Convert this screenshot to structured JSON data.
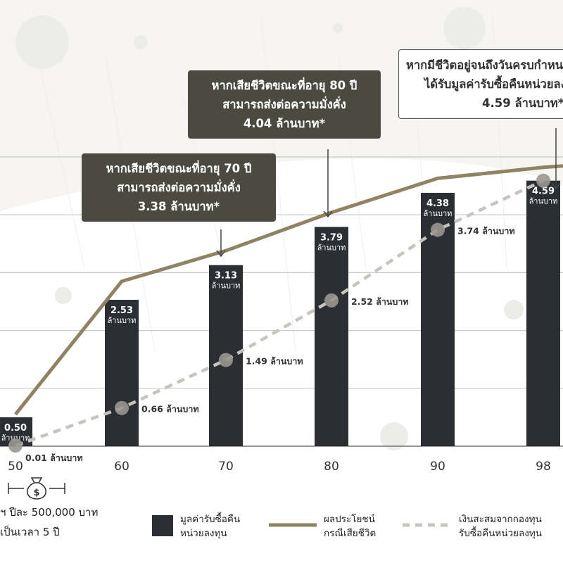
{
  "chart_data": {
    "type": "bar",
    "x": [
      50,
      60,
      70,
      80,
      90,
      98
    ],
    "x_labels": [
      "50",
      "60",
      "70",
      "80",
      "90",
      "98"
    ],
    "series": [
      {
        "name": "มูลค่ารับซื้อคืนหน่วยลงทุน",
        "type": "bar",
        "values": [
          0.5,
          2.53,
          3.13,
          3.79,
          4.38,
          4.59
        ],
        "value_labels": [
          "0.50",
          "2.53",
          "3.13",
          "3.79",
          "4.38",
          "4.59"
        ],
        "unit_label": "ล้านบาท",
        "color": "#2b2f33"
      },
      {
        "name": "ผลประโยชน์กรณีเสียชีวิต",
        "type": "line",
        "x": [
          50,
          60,
          70,
          80,
          90,
          98
        ],
        "values": [
          0.55,
          2.85,
          3.38,
          4.04,
          4.63,
          4.82
        ],
        "color": "#8f8364"
      },
      {
        "name": "เงินสะสมจากกองทุนรับซื้อคืนหน่วยลงทุน",
        "type": "dashed-line",
        "x": [
          50,
          60,
          70,
          80,
          90,
          98
        ],
        "values": [
          0.01,
          0.66,
          1.49,
          2.52,
          3.74,
          4.59
        ],
        "point_labels": [
          "0.01 ล้านบาท",
          "0.66 ล้านบาท",
          "1.49 ล้านบาท",
          "2.52 ล้านบาท",
          "3.74 ล้านบาท",
          ""
        ],
        "color": "#c8c4bd"
      }
    ],
    "ylim": [
      0,
      5.0
    ],
    "grid": "horizontal",
    "title": "",
    "xlabel": "",
    "ylabel": ""
  },
  "callouts": [
    {
      "lines": [
        "หากเสียชีวิตขณะที่อายุ 70 ปี",
        "สามารถส่งต่อความมั่งคั่ง",
        "3.38 ล้านบาท*"
      ],
      "style": "dark"
    },
    {
      "lines": [
        "หากเสียชีวิตขณะที่อายุ 80 ปี",
        "สามารถส่งต่อความมั่งคั่ง",
        "4.04 ล้านบาท*"
      ],
      "style": "dark"
    },
    {
      "lines": [
        "หากมีชีวิตอยู่จนถึงวันครบกำหนด",
        "ได้รับมูลค่ารับซื้อคืนหน่วยลงทุน",
        "4.59 ล้านบาท*"
      ],
      "style": "light"
    }
  ],
  "premium_note": {
    "lines": [
      "ฯ ปีละ 500,000 บาท",
      "เป็นเวลา 5 ปี"
    ],
    "icon": "money-bag-icon"
  },
  "legend": [
    {
      "lines": [
        "มูลค่ารับซื้อคืน",
        "หน่วยลงทุน"
      ],
      "swatch": "square",
      "color": "#2b2f33"
    },
    {
      "lines": [
        "ผลประโยชน์",
        "กรณีเสียชีวิต"
      ],
      "swatch": "line",
      "color": "#8f8364"
    },
    {
      "lines": [
        "เงินสะสมจากกองทุน",
        "รับซื้อคืนหน่วยลงทุน"
      ],
      "swatch": "dashed",
      "color": "#c8c4bd"
    }
  ]
}
